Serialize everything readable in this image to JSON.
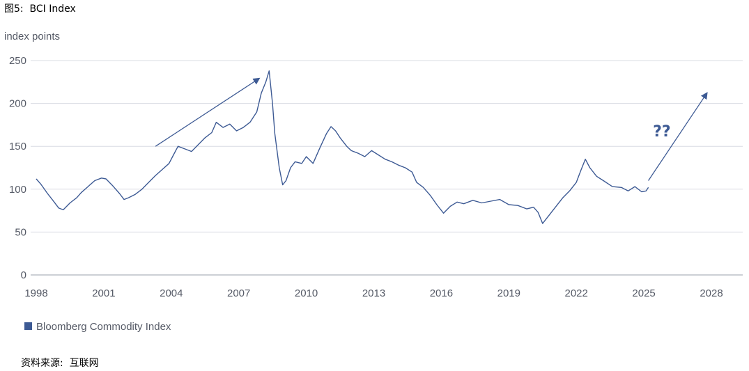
{
  "figure": {
    "title": "图5:  BCI Index",
    "source": "资料来源:  互联网"
  },
  "colors": {
    "line": "#3d5a94",
    "grid": "#d9dce3",
    "axis": "#9aa0ab",
    "text": "#555a66",
    "annotation": "#3d5a94"
  },
  "chart_data": {
    "type": "line",
    "ylabel": "index points",
    "xlabel": "",
    "title": "",
    "xlim": [
      1998,
      2028
    ],
    "ylim": [
      0,
      250
    ],
    "x_ticks": [
      "1998",
      "2001",
      "2004",
      "2007",
      "2010",
      "2013",
      "2016",
      "2019",
      "2022",
      "2025",
      "2028"
    ],
    "y_ticks": [
      "0",
      "50",
      "100",
      "150",
      "200",
      "250"
    ],
    "grid": "horizontal",
    "legend_position": "bottom-left",
    "series": [
      {
        "name": "Bloomberg Commodity Index",
        "x": [
          1998.0,
          1998.2,
          1998.5,
          1998.8,
          1999.0,
          1999.2,
          1999.5,
          1999.8,
          2000.0,
          2000.3,
          2000.6,
          2000.9,
          2001.1,
          2001.4,
          2001.7,
          2001.9,
          2002.1,
          2002.4,
          2002.7,
          2003.0,
          2003.3,
          2003.6,
          2003.9,
          2004.1,
          2004.3,
          2004.6,
          2004.9,
          2005.2,
          2005.5,
          2005.8,
          2006.0,
          2006.3,
          2006.6,
          2006.9,
          2007.2,
          2007.5,
          2007.8,
          2008.0,
          2008.2,
          2008.35,
          2008.5,
          2008.6,
          2008.8,
          2008.95,
          2009.1,
          2009.3,
          2009.5,
          2009.8,
          2010.0,
          2010.3,
          2010.6,
          2010.9,
          2011.1,
          2011.3,
          2011.5,
          2011.8,
          2012.0,
          2012.3,
          2012.6,
          2012.9,
          2013.2,
          2013.5,
          2013.8,
          2014.1,
          2014.4,
          2014.7,
          2014.9,
          2015.2,
          2015.5,
          2015.8,
          2016.1,
          2016.4,
          2016.7,
          2017.0,
          2017.4,
          2017.8,
          2018.2,
          2018.6,
          2019.0,
          2019.4,
          2019.8,
          2020.1,
          2020.3,
          2020.5,
          2020.8,
          2021.1,
          2021.4,
          2021.7,
          2022.0,
          2022.2,
          2022.4,
          2022.6,
          2022.9,
          2023.2,
          2023.6,
          2024.0,
          2024.3,
          2024.6,
          2024.9,
          2025.1,
          2025.2
        ],
        "values": [
          112,
          106,
          95,
          85,
          78,
          76,
          84,
          90,
          96,
          103,
          110,
          113,
          112,
          104,
          95,
          88,
          90,
          94,
          100,
          108,
          116,
          123,
          130,
          140,
          150,
          147,
          144,
          152,
          160,
          166,
          178,
          172,
          176,
          168,
          172,
          178,
          190,
          212,
          225,
          238,
          200,
          165,
          125,
          105,
          110,
          125,
          132,
          130,
          138,
          130,
          148,
          165,
          173,
          168,
          160,
          150,
          145,
          142,
          138,
          145,
          140,
          135,
          132,
          128,
          125,
          120,
          108,
          102,
          93,
          82,
          72,
          80,
          85,
          83,
          87,
          84,
          86,
          88,
          82,
          81,
          77,
          79,
          73,
          60,
          70,
          80,
          90,
          98,
          108,
          122,
          135,
          125,
          115,
          110,
          103,
          102,
          98,
          103,
          97,
          98,
          102
        ]
      }
    ],
    "annotations": [
      {
        "type": "arrow",
        "from": [
          2003.3,
          150
        ],
        "to": [
          2007.9,
          229
        ]
      },
      {
        "type": "arrow",
        "from": [
          2025.2,
          110
        ],
        "to": [
          2027.8,
          212
        ]
      },
      {
        "type": "text",
        "text": "??",
        "x": 2025.8,
        "y": 168
      }
    ]
  }
}
